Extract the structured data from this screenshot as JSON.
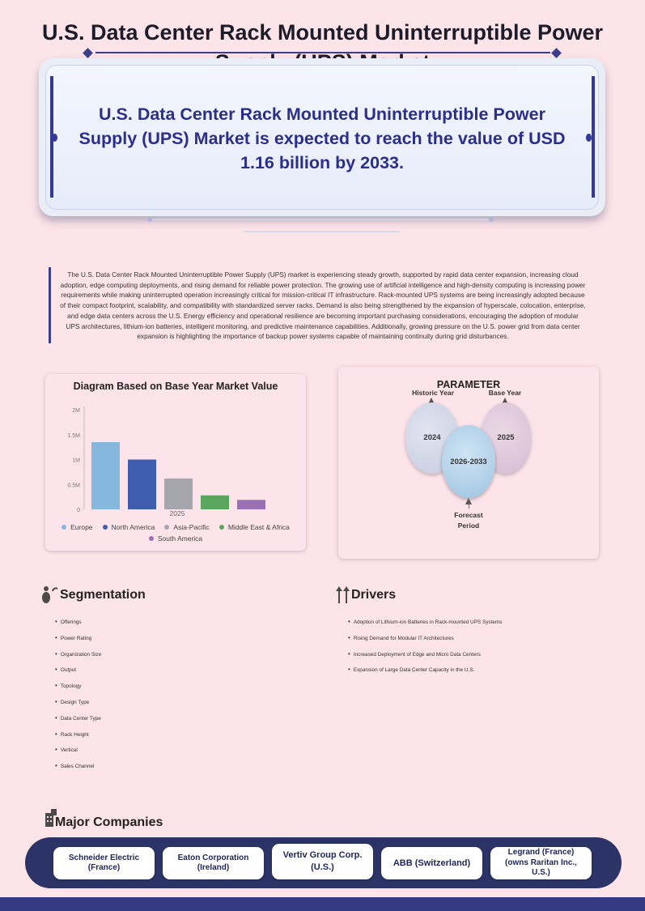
{
  "title": "U.S. Data Center Rack Mounted Uninterruptible Power Supply (UPS) Market",
  "hero": {
    "text": "U.S. Data Center Rack Mounted Uninterruptible Power Supply (UPS) Market is expected to reach the value of USD 1.16 billion by 2033."
  },
  "intro": "The U.S. Data Center Rack Mounted Uninterruptible Power Supply (UPS) market is experiencing steady growth, supported by rapid data center expansion, increasing cloud adoption, edge computing deployments, and rising demand for reliable power protection. The growing use of artificial intelligence and high-density computing is increasing power requirements while making uninterrupted operation increasingly critical for mission-critical IT infrastructure. Rack-mounted UPS systems are being increasingly adopted because of their compact footprint, scalability, and compatibility with standardized server racks. Demand is also being strengthened by the expansion of hyperscale, colocation, enterprise, and edge data centers across the U.S. Energy efficiency and operational resilience are becoming important purchasing considerations, encouraging the adoption of modular UPS architectures, lithium-ion batteries, intelligent monitoring, and predictive maintenance capabilities. Additionally, growing pressure on the U.S. power grid from data center expansion is highlighting the importance of backup power systems capable of maintaining continuity during grid disturbances.",
  "chart_data": {
    "type": "bar",
    "title": "Diagram Based on Base Year Market Value",
    "categories": [
      "2025"
    ],
    "series": [
      {
        "name": "Europe",
        "values": [
          1.35
        ],
        "color": "#86b8de"
      },
      {
        "name": "North America",
        "values": [
          1.0
        ],
        "color": "#3f5fae"
      },
      {
        "name": "Asia-Pacific",
        "values": [
          0.62
        ],
        "color": "#a6a6ae"
      },
      {
        "name": "Middle East & Africa",
        "values": [
          0.28
        ],
        "color": "#5aa65f"
      },
      {
        "name": "South America",
        "values": [
          0.19
        ],
        "color": "#9b70b5"
      }
    ],
    "unit": "M",
    "ylim": [
      0,
      2
    ],
    "yticks": [
      "0",
      "0.5M",
      "1M",
      "1.5M",
      "2M"
    ],
    "ytick_values": [
      0,
      0.5,
      1,
      1.5,
      2
    ],
    "legend_position": "bottom",
    "grid": false
  },
  "parameter": {
    "title": "PARAMETER",
    "historic_label": "Historic Year",
    "historic_value": "2024",
    "base_label": "Base Year",
    "base_value": "2025",
    "forecast_value": "2026-2033",
    "forecast_label": "Forecast Period"
  },
  "segmentation": {
    "heading": "Segmentation",
    "items": [
      "Offerings",
      "Power Rating",
      "Organization Size",
      "Output",
      "Topology",
      "Design Type",
      "Data Center Type",
      "Rack Height",
      "Vertical",
      "Sales Channel"
    ]
  },
  "drivers": {
    "heading": "Drivers",
    "items": [
      "Adoption of Lithium-ion Batteries in Rack-mounted UPS Systems",
      "Rising Demand for Modular IT Architectures",
      "Increased Deployment of Edge and Micro Data Centers",
      "Expansion of Large Data Center Capacity in the U.S."
    ]
  },
  "companies": {
    "heading": "Major Companies",
    "items": [
      "Schneider Electric (France)",
      "Eaton Corporation (Ireland)",
      "Vertiv Group Corp. (U.S.)",
      "ABB (Switzerland)",
      "Legrand (France) (owns Raritan Inc., U.S.)"
    ]
  },
  "colors": {
    "accent": "#343896",
    "background": "#fde4e8",
    "band": "#2c3467"
  }
}
